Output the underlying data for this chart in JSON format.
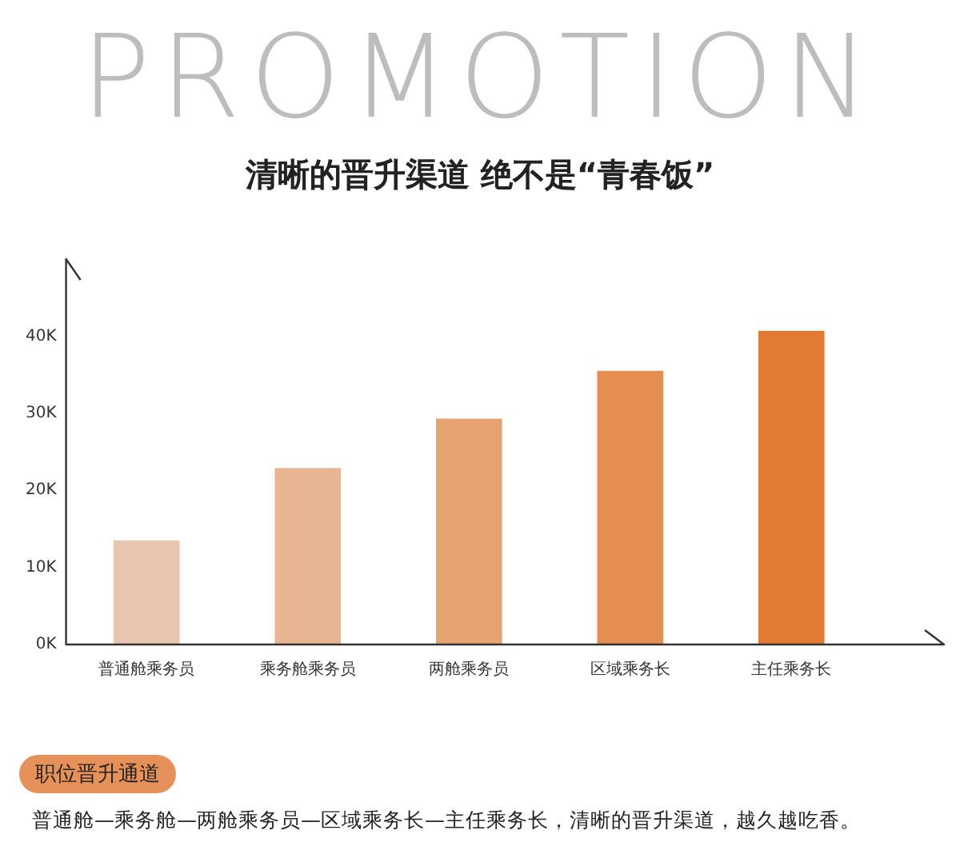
{
  "chart_data": {
    "type": "bar",
    "title": "清晰的晋升渠道 绝不是“青春饭”",
    "categories": [
      "普通舱乘务员",
      "乘务舱乘务员",
      "两舱乘务员",
      "区域乘务长",
      "主任乘务长"
    ],
    "values": [
      13.5,
      22.9,
      29.3,
      35.5,
      40.7
    ],
    "colors": [
      "#e8c5ae",
      "#e8b592",
      "#e6a271",
      "#e68d52",
      "#e37a34"
    ],
    "ylim": [
      0,
      50
    ],
    "yticks": [
      {
        "value": 0,
        "label": "0K"
      },
      {
        "value": 10,
        "label": "10K"
      },
      {
        "value": 20,
        "label": "20K"
      },
      {
        "value": 30,
        "label": "30K"
      },
      {
        "value": 40,
        "label": "40K"
      }
    ],
    "grid": false,
    "legend": false,
    "annotations": [
      "PROMOTION",
      "职位晋升通道",
      "普通舱—乘务舱—两舱乘务员—区域乘务长—主任乘务长，清晰的晋升渠道，越久越吃香。"
    ]
  }
}
